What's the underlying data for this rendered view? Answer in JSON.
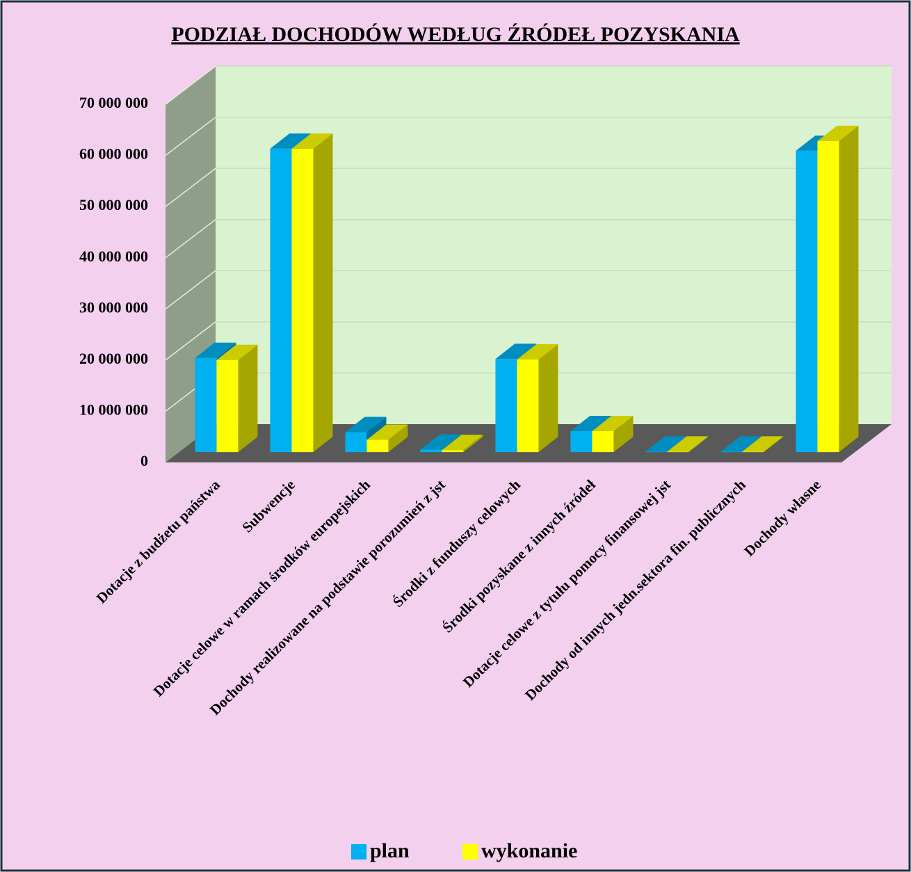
{
  "chart_data": {
    "type": "bar3d",
    "title": "PODZIAŁ  DOCHODÓW  WEDŁUG  ŹRÓDEŁ  POZYSKANIA",
    "categories": [
      "Dotacje z budżetu państwa",
      "Subwencje",
      "Dotacje celowe w ramach środków europejskich",
      "Dochody realizowane na podstawie porozumień z jst",
      "Środki z funduszy celowych",
      "Środki pozyskane z innych źródeł",
      "Dotacje celowe z tytułu pomocy finansowej jst",
      "Dochody od innych jedn.sektora fin. publicznych",
      "Dochody własne"
    ],
    "series": [
      {
        "name": "plan",
        "color": "#00b0f0",
        "values": [
          18400000,
          59300000,
          3900000,
          500000,
          18200000,
          4100000,
          100000,
          100000,
          58900000
        ]
      },
      {
        "name": "wykonanie",
        "color": "#ffff00",
        "values": [
          18000000,
          59300000,
          2400000,
          400000,
          18100000,
          4100000,
          100000,
          100000,
          60800000
        ]
      }
    ],
    "ylim": [
      0,
      70000000
    ],
    "yticks": [
      0,
      {
        "value": 10000000,
        "label": "10 000 000"
      },
      {
        "value": 20000000,
        "label": "20 000 000"
      },
      {
        "value": 30000000,
        "label": "30 000 000"
      },
      {
        "value": 40000000,
        "label": "40 000 000"
      },
      {
        "value": 50000000,
        "label": "50 000 000"
      },
      {
        "value": 60000000,
        "label": "60 000 000"
      },
      {
        "value": 70000000,
        "label": "70 000 000"
      }
    ],
    "grid": true,
    "legend": "bottom"
  }
}
